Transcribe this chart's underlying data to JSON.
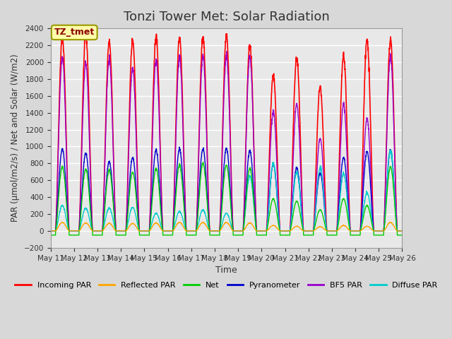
{
  "title": "Tonzi Tower Met: Solar Radiation",
  "ylabel": "PAR (μmol/m2/s) / Net and Solar (W/m2)",
  "xlabel": "Time",
  "ylim": [
    -200,
    2400
  ],
  "yticks": [
    -200,
    0,
    200,
    400,
    600,
    800,
    1000,
    1200,
    1400,
    1600,
    1800,
    2000,
    2200,
    2400
  ],
  "xtick_labels": [
    "May 11",
    "May 12",
    "May 13",
    "May 14",
    "May 15",
    "May 16",
    "May 17",
    "May 18",
    "May 19",
    "May 20",
    "May 21",
    "May 22",
    "May 23",
    "May 24",
    "May 25",
    "May 26"
  ],
  "annotation_text": "TZ_tmet",
  "annotation_color": "#8B0000",
  "annotation_bg": "#FFFFAA",
  "annotation_border": "#999900",
  "series": {
    "incoming_par": {
      "color": "#FF0000",
      "label": "Incoming PAR"
    },
    "reflected_par": {
      "color": "#FFA500",
      "label": "Reflected PAR"
    },
    "net": {
      "color": "#00CC00",
      "label": "Net"
    },
    "pyranometer": {
      "color": "#0000CC",
      "label": "Pyranometer"
    },
    "bf5_par": {
      "color": "#9900CC",
      "label": "BF5 PAR"
    },
    "diffuse_par": {
      "color": "#00CCCC",
      "label": "Diffuse PAR"
    }
  },
  "n_points_per_day": 144,
  "n_days": 15,
  "day_peaks_incoming": [
    2290,
    2320,
    2240,
    2260,
    2300,
    2290,
    2290,
    2310,
    2200,
    1850,
    2050,
    1700,
    2080,
    2260,
    2270
  ],
  "day_peaks_bf5": [
    2050,
    1990,
    2030,
    1930,
    2020,
    2060,
    2070,
    2070,
    2060,
    1410,
    1500,
    1100,
    1500,
    1330,
    2060
  ],
  "day_peaks_pyranometer": [
    970,
    920,
    820,
    870,
    960,
    970,
    975,
    980,
    945,
    790,
    750,
    680,
    870,
    940,
    960
  ],
  "day_peaks_net": [
    760,
    730,
    720,
    700,
    740,
    780,
    800,
    780,
    740,
    380,
    350,
    250,
    380,
    300,
    760
  ],
  "day_peaks_reflected": [
    100,
    95,
    90,
    88,
    95,
    100,
    100,
    100,
    95,
    65,
    55,
    50,
    65,
    55,
    100
  ],
  "day_peaks_diffuse": [
    300,
    270,
    270,
    280,
    210,
    230,
    250,
    210,
    650,
    800,
    700,
    750,
    680,
    450,
    960
  ],
  "night_net": -50,
  "figsize": [
    6.4,
    4.8
  ],
  "dpi": 100
}
